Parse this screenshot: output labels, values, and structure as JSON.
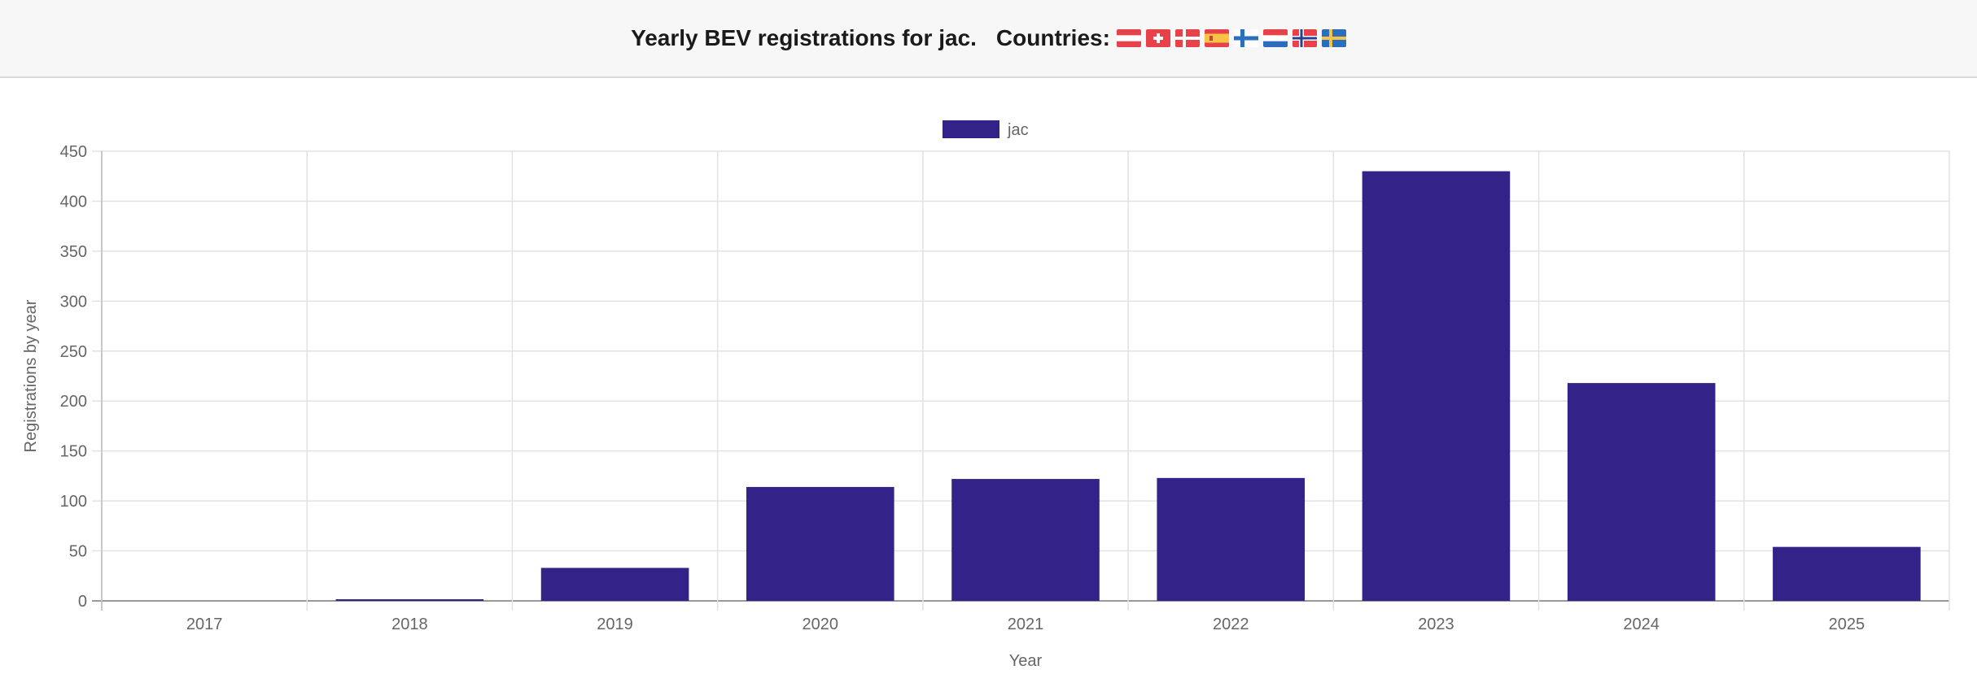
{
  "header": {
    "title": "Yearly BEV registrations for jac.",
    "countries_label": "Countries:",
    "flags": [
      {
        "icon": "austria-flag-icon"
      },
      {
        "icon": "switzerland-flag-icon"
      },
      {
        "icon": "denmark-flag-icon"
      },
      {
        "icon": "spain-flag-icon"
      },
      {
        "icon": "finland-flag-icon"
      },
      {
        "icon": "netherlands-flag-icon"
      },
      {
        "icon": "norway-flag-icon"
      },
      {
        "icon": "sweden-flag-icon"
      }
    ]
  },
  "chart_data": {
    "type": "bar",
    "categories": [
      "2017",
      "2018",
      "2019",
      "2020",
      "2021",
      "2022",
      "2023",
      "2024",
      "2025"
    ],
    "series": [
      {
        "name": "jac",
        "values": [
          0,
          1,
          33,
          114,
          122,
          123,
          430,
          218,
          54
        ],
        "color": "#332288"
      }
    ],
    "xlabel": "Year",
    "ylabel": "Registrations by year",
    "ylim": [
      0,
      450
    ],
    "yticks": [
      0,
      50,
      100,
      150,
      200,
      250,
      300,
      350,
      400,
      450
    ],
    "grid": true,
    "legend_position": "top"
  }
}
